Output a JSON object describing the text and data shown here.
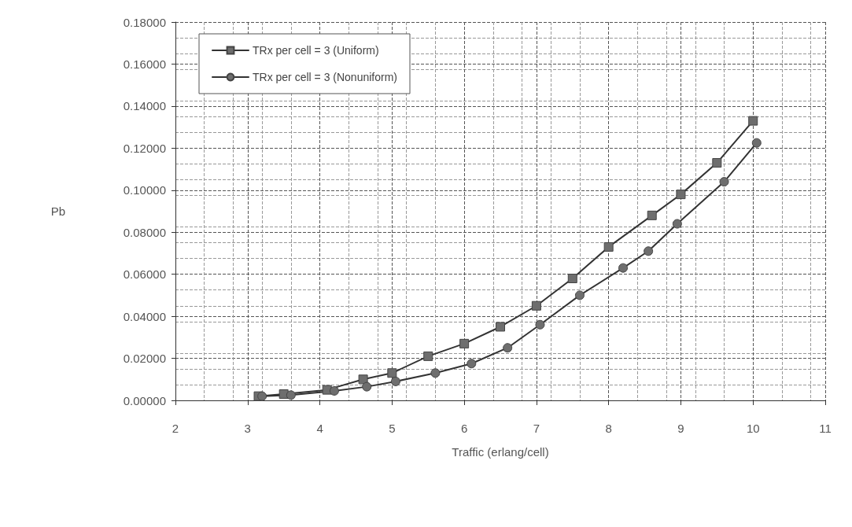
{
  "chart_data": {
    "type": "line",
    "xlabel": "Traffic (erlang/cell)",
    "ylabel": "Pb",
    "xlim": [
      2,
      11
    ],
    "xticks": [
      2,
      3,
      4,
      5,
      6,
      7,
      8,
      9,
      10,
      11
    ],
    "ylim": [
      0,
      0.18
    ],
    "yticks": [
      {
        "value": 0,
        "label": "0.00000"
      },
      {
        "value": 0.02,
        "label": "0.02000"
      },
      {
        "value": 0.04,
        "label": "0.04000"
      },
      {
        "value": 0.06,
        "label": "0.06000"
      },
      {
        "value": 0.08,
        "label": "0.08000"
      },
      {
        "value": 0.1,
        "label": "0.10000"
      },
      {
        "value": 0.12,
        "label": "0.12000"
      },
      {
        "value": 0.14,
        "label": "0.14000"
      },
      {
        "value": 0.16,
        "label": "0.16000"
      },
      {
        "value": 0.18,
        "label": "0.18000"
      }
    ],
    "grid": true,
    "legend": "top left",
    "line_style": "solid",
    "series": [
      {
        "name": "TRx per cell = 3 (Uniform)",
        "color": "#6e6e6e",
        "marker": "square",
        "x": [
          3.15,
          3.5,
          4.1,
          4.6,
          5.0,
          5.5,
          6.0,
          6.5,
          7.0,
          7.5,
          8.0,
          8.6,
          9.0,
          9.5,
          10.0
        ],
        "values": [
          0.002,
          0.003,
          0.005,
          0.01,
          0.013,
          0.021,
          0.027,
          0.035,
          0.045,
          0.058,
          0.073,
          0.088,
          0.098,
          0.113,
          0.133
        ]
      },
      {
        "name": "TRx per cell = 3 (Nonuniform)",
        "color": "#6e6e6e",
        "marker": "circle",
        "x": [
          3.2,
          3.6,
          4.2,
          4.65,
          5.05,
          5.6,
          6.1,
          6.6,
          7.05,
          7.6,
          8.2,
          8.55,
          8.95,
          9.6,
          10.05
        ],
        "values": [
          0.002,
          0.0025,
          0.0045,
          0.0065,
          0.009,
          0.013,
          0.0175,
          0.025,
          0.036,
          0.05,
          0.063,
          0.071,
          0.084,
          0.104,
          0.1225
        ]
      }
    ]
  }
}
